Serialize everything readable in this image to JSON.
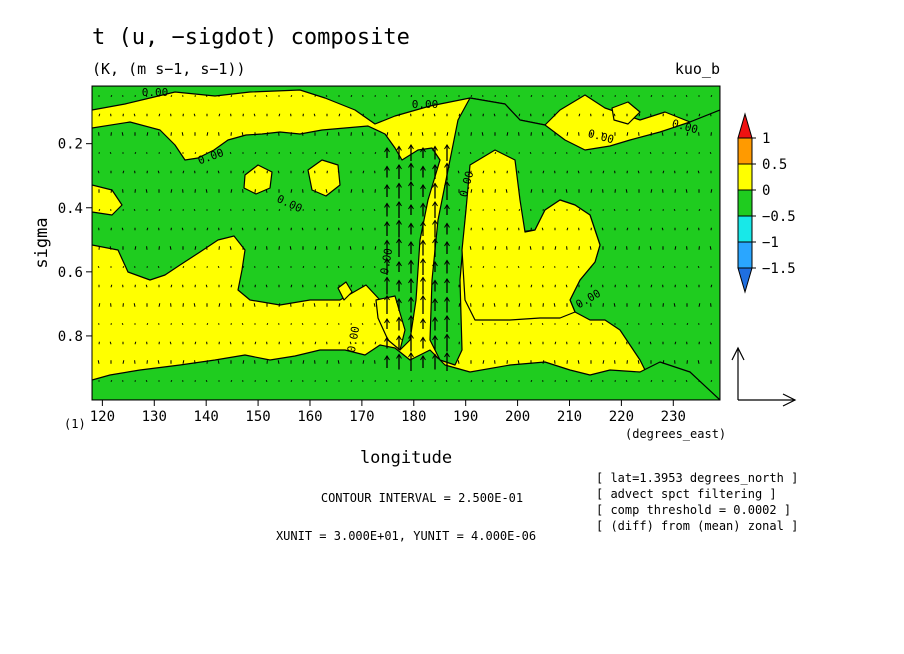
{
  "chart_data": {
    "type": "heatmap",
    "title": "t (u, −sigdot) composite",
    "subtitle": "(K, (m s−1, s−1))",
    "corner_label": "kuo_b",
    "xlabel": "longitude",
    "x_units_label": "(degrees_east)",
    "ylabel": "sigma",
    "y_unit_marker": "(1)",
    "xlim": [
      118,
      239
    ],
    "ylim": [
      1.0,
      0.02
    ],
    "x_ticks": [
      120,
      130,
      140,
      150,
      160,
      170,
      180,
      190,
      200,
      210,
      220,
      230
    ],
    "x_tick_labels": [
      "120",
      "130",
      "140",
      "150",
      "160",
      "170",
      "180",
      "190",
      "200",
      "210",
      "220",
      "230"
    ],
    "y_ticks": [
      0.2,
      0.4,
      0.6,
      0.8
    ],
    "y_tick_labels": [
      "0.2",
      "0.4",
      "0.6",
      "0.8"
    ],
    "colorbar": {
      "levels": [
        -1.5,
        -1,
        -0.5,
        0,
        0.5,
        1
      ],
      "labels": [
        "−1.5",
        "−1",
        "−0.5",
        "0",
        "0.5",
        "1"
      ],
      "colors": [
        "#1f6fe0",
        "#2aa6ff",
        "#18e8e8",
        "#1fcc1f",
        "#ffff00",
        "#ff9a00",
        "#ee1111"
      ]
    },
    "contour_label": "0.00",
    "contour_label_count": 10,
    "contour_interval_text": "CONTOUR INTERVAL = 2.500E-01",
    "unit_vector_text": "XUNIT = 3.000E+01, YUNIT = 4.000E-06",
    "vector_field": {
      "strong_upward_region": "longitude 175-190, sigma 0.2-0.9"
    },
    "info_lines": [
      "[ lat=1.3953 degrees_north ]",
      "[ advect spct filtering ]",
      "[ comp threshold = 0.0002 ]",
      "[ (diff) from (mean) zonal ]"
    ]
  },
  "colors": {
    "positive_fill": "#ffff00",
    "negative_fill": "#1fcc1f",
    "contour_line": "#000000"
  }
}
